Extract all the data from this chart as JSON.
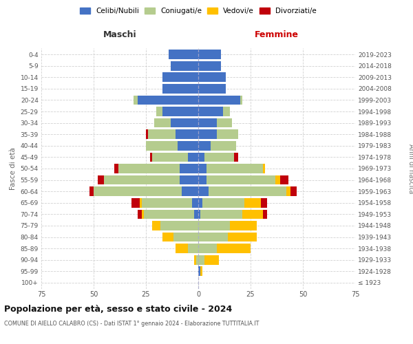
{
  "age_groups": [
    "100+",
    "95-99",
    "90-94",
    "85-89",
    "80-84",
    "75-79",
    "70-74",
    "65-69",
    "60-64",
    "55-59",
    "50-54",
    "45-49",
    "40-44",
    "35-39",
    "30-34",
    "25-29",
    "20-24",
    "15-19",
    "10-14",
    "5-9",
    "0-4"
  ],
  "birth_years": [
    "≤ 1923",
    "1924-1928",
    "1929-1933",
    "1934-1938",
    "1939-1943",
    "1944-1948",
    "1949-1953",
    "1954-1958",
    "1959-1963",
    "1964-1968",
    "1969-1973",
    "1974-1978",
    "1979-1983",
    "1984-1988",
    "1989-1993",
    "1994-1998",
    "1999-2003",
    "2004-2008",
    "2009-2013",
    "2014-2018",
    "2019-2023"
  ],
  "male_celibi": [
    0,
    0,
    0,
    0,
    0,
    0,
    2,
    3,
    8,
    9,
    9,
    5,
    10,
    11,
    13,
    17,
    29,
    17,
    17,
    13,
    14
  ],
  "male_coniugati": [
    0,
    0,
    1,
    5,
    12,
    18,
    24,
    24,
    42,
    36,
    29,
    17,
    15,
    13,
    8,
    3,
    2,
    0,
    0,
    0,
    0
  ],
  "male_vedovi": [
    0,
    0,
    1,
    6,
    5,
    4,
    1,
    1,
    0,
    0,
    0,
    0,
    0,
    0,
    0,
    0,
    0,
    0,
    0,
    0,
    0
  ],
  "male_divorziati": [
    0,
    0,
    0,
    0,
    0,
    0,
    2,
    4,
    2,
    3,
    2,
    1,
    0,
    1,
    0,
    0,
    0,
    0,
    0,
    0,
    0
  ],
  "female_nubili": [
    0,
    1,
    0,
    0,
    0,
    0,
    1,
    2,
    5,
    4,
    4,
    3,
    6,
    9,
    9,
    12,
    20,
    13,
    13,
    11,
    11
  ],
  "female_coniugate": [
    0,
    0,
    3,
    9,
    14,
    15,
    20,
    20,
    37,
    33,
    27,
    14,
    12,
    10,
    7,
    3,
    1,
    0,
    0,
    0,
    0
  ],
  "female_vedove": [
    0,
    1,
    7,
    16,
    14,
    13,
    10,
    8,
    2,
    2,
    1,
    0,
    0,
    0,
    0,
    0,
    0,
    0,
    0,
    0,
    0
  ],
  "female_divorziate": [
    0,
    0,
    0,
    0,
    0,
    0,
    2,
    3,
    3,
    4,
    0,
    2,
    0,
    0,
    0,
    0,
    0,
    0,
    0,
    0,
    0
  ],
  "color_celibi": "#4472c4",
  "color_coniugati": "#b5cc8e",
  "color_vedovi": "#ffc000",
  "color_divorziati": "#c0000b",
  "title": "Popolazione per età, sesso e stato civile - 2024",
  "subtitle": "COMUNE DI AIELLO CALABRO (CS) - Dati ISTAT 1° gennaio 2024 - Elaborazione TUTTITALIA.IT",
  "ylabel_left": "Fasce di età",
  "ylabel_right": "Anni di nascita",
  "label_maschi": "Maschi",
  "label_femmine": "Femmine",
  "legend_labels": [
    "Celibi/Nubili",
    "Coniugati/e",
    "Vedovi/e",
    "Divorziati/e"
  ],
  "xlim": 75
}
